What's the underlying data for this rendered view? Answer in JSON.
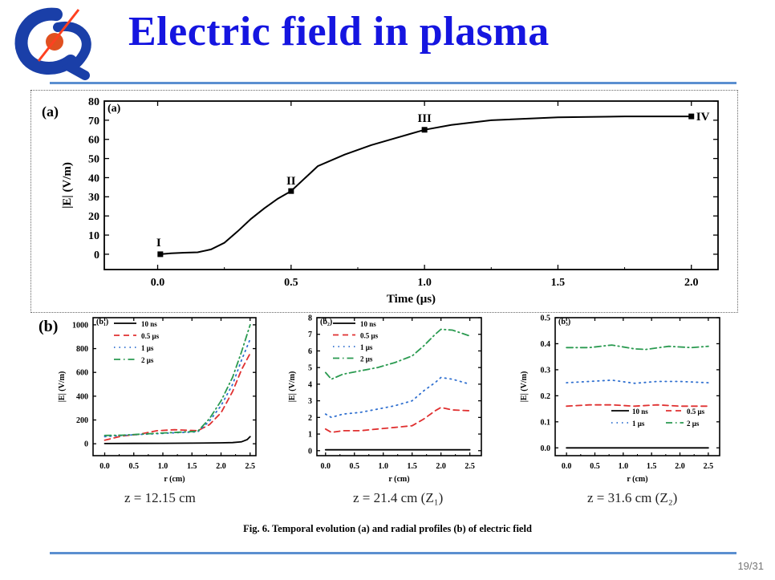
{
  "slide": {
    "title": "Electric field in plasma",
    "page_number": "19/31",
    "caption": "Fig. 6.  Temporal evolution (a)  and radial profiles (b) of  electric field",
    "panel_a_label": "(a)",
    "panel_b_label": "(b)",
    "z_labels": [
      "z = 12.15 cm",
      "z = 21.4 cm (Z₁)",
      "z = 31.6 cm (Z₂)"
    ],
    "colors": {
      "title": "#1515e0",
      "rule": "#5b8fd0"
    }
  },
  "chart_data": [
    {
      "id": "a",
      "type": "line",
      "inner_label": "(a)",
      "xlabel": "Time  (μs)",
      "ylabel": "|E|  (V/m)",
      "xlim": [
        -0.2,
        2.1
      ],
      "ylim": [
        -8,
        80
      ],
      "xticks": [
        0.0,
        0.5,
        1.0,
        1.5,
        2.0
      ],
      "xtick_labels": [
        "0.0",
        "0.5",
        "1.0",
        "1.5",
        "2.0"
      ],
      "yticks": [
        0,
        10,
        20,
        30,
        40,
        50,
        60,
        70,
        80
      ],
      "ytick_labels": [
        "0",
        "10",
        "20",
        "30",
        "40",
        "50",
        "60",
        "70",
        "80"
      ],
      "series": [
        {
          "name": "|E|",
          "color": "#000000",
          "x": [
            0.01,
            0.05,
            0.1,
            0.15,
            0.2,
            0.25,
            0.3,
            0.35,
            0.4,
            0.45,
            0.5,
            0.6,
            0.7,
            0.8,
            0.9,
            1.0,
            1.1,
            1.25,
            1.5,
            1.75,
            2.0
          ],
          "y": [
            0,
            0.5,
            0.8,
            1,
            2.5,
            6,
            12,
            18.5,
            24,
            29,
            33,
            46,
            52,
            57,
            61,
            65,
            67.5,
            70,
            71.5,
            72,
            72
          ]
        }
      ],
      "markers": [
        {
          "label": "I",
          "x": 0.01,
          "y": 0
        },
        {
          "label": "II",
          "x": 0.5,
          "y": 33
        },
        {
          "label": "III",
          "x": 1.0,
          "y": 65
        },
        {
          "label": "IV",
          "x": 2.0,
          "y": 72
        }
      ]
    },
    {
      "id": "b1",
      "type": "line",
      "inner_label": "(b₁)",
      "xlabel": "r  (cm)",
      "ylabel": "|E|  (V/m)",
      "xlim": [
        -0.2,
        2.6
      ],
      "ylim": [
        -100,
        1060
      ],
      "xticks": [
        0.0,
        0.5,
        1.0,
        1.5,
        2.0,
        2.5
      ],
      "xtick_labels": [
        "0.0",
        "0.5",
        "1.0",
        "1.5",
        "2.0",
        "2.5"
      ],
      "yticks": [
        0,
        200,
        400,
        600,
        800,
        1000
      ],
      "ytick_labels": [
        "0",
        "200",
        "400",
        "600",
        "800",
        "1000"
      ],
      "legend": [
        "10 ns",
        "0.5 μs",
        "1 μs",
        "2 μs"
      ],
      "series": [
        {
          "name": "10 ns",
          "style": "solid",
          "color": "#000000",
          "x": [
            0,
            0.5,
            1,
            1.5,
            2,
            2.2,
            2.35,
            2.45,
            2.5
          ],
          "y": [
            2,
            3,
            4,
            5,
            8,
            10,
            16,
            35,
            60
          ]
        },
        {
          "name": "0.5 μs",
          "style": "dash",
          "color": "#e03030",
          "x": [
            0,
            0.3,
            0.6,
            0.9,
            1.2,
            1.6,
            1.8,
            2.0,
            2.2,
            2.35,
            2.5
          ],
          "y": [
            30,
            65,
            80,
            110,
            118,
            110,
            160,
            260,
            440,
            620,
            760
          ]
        },
        {
          "name": "1 μs",
          "style": "dot",
          "color": "#3070d0",
          "x": [
            0,
            0.3,
            0.6,
            0.9,
            1.2,
            1.6,
            1.8,
            2.0,
            2.2,
            2.35,
            2.5
          ],
          "y": [
            60,
            70,
            78,
            85,
            92,
            100,
            190,
            320,
            500,
            700,
            880
          ]
        },
        {
          "name": "2 μs",
          "style": "dashdot",
          "color": "#2a9a50",
          "x": [
            0,
            0.3,
            0.6,
            0.9,
            1.2,
            1.6,
            1.8,
            2.0,
            2.2,
            2.35,
            2.5
          ],
          "y": [
            70,
            72,
            80,
            88,
            95,
            105,
            210,
            360,
            560,
            770,
            1000
          ]
        }
      ]
    },
    {
      "id": "b2",
      "type": "line",
      "inner_label": "(b₂)",
      "xlabel": "r  (cm)",
      "ylabel": "|E|  (V/m)",
      "xlim": [
        -0.15,
        2.7
      ],
      "ylim": [
        -0.3,
        8
      ],
      "xticks": [
        0.0,
        0.5,
        1.0,
        1.5,
        2.0,
        2.5
      ],
      "xtick_labels": [
        "0.0",
        "0.5",
        "1.0",
        "1.5",
        "2.0",
        "2.5"
      ],
      "yticks": [
        0,
        1,
        2,
        3,
        4,
        5,
        6,
        7,
        8
      ],
      "ytick_labels": [
        "0",
        "1",
        "2",
        "3",
        "4",
        "5",
        "6",
        "7",
        "8"
      ],
      "legend": [
        "10 ns",
        "0.5 μs",
        "1 μs",
        "2 μs"
      ],
      "series": [
        {
          "name": "10 ns",
          "style": "solid",
          "color": "#000000",
          "x": [
            0,
            2.5
          ],
          "y": [
            0.05,
            0.05
          ]
        },
        {
          "name": "0.5 μs",
          "style": "dash",
          "color": "#e03030",
          "x": [
            0,
            0.1,
            0.3,
            0.6,
            0.9,
            1.2,
            1.5,
            1.7,
            1.9,
            2.0,
            2.2,
            2.5
          ],
          "y": [
            1.3,
            1.1,
            1.2,
            1.2,
            1.3,
            1.4,
            1.5,
            1.9,
            2.4,
            2.6,
            2.45,
            2.4
          ]
        },
        {
          "name": "1 μs",
          "style": "dot",
          "color": "#3070d0",
          "x": [
            0,
            0.1,
            0.3,
            0.6,
            0.9,
            1.2,
            1.5,
            1.7,
            1.9,
            2.0,
            2.2,
            2.5
          ],
          "y": [
            2.2,
            2.0,
            2.2,
            2.3,
            2.5,
            2.7,
            3.0,
            3.6,
            4.1,
            4.4,
            4.3,
            4.0
          ]
        },
        {
          "name": "2 μs",
          "style": "dashdot",
          "color": "#2a9a50",
          "x": [
            0,
            0.1,
            0.3,
            0.6,
            0.9,
            1.2,
            1.5,
            1.7,
            1.9,
            2.0,
            2.2,
            2.5
          ],
          "y": [
            4.7,
            4.3,
            4.6,
            4.8,
            5.0,
            5.3,
            5.7,
            6.3,
            7.0,
            7.3,
            7.25,
            6.9
          ]
        }
      ]
    },
    {
      "id": "b3",
      "type": "line",
      "inner_label": "(b₃)",
      "xlabel": "r  (cm)",
      "ylabel": "|E|  (V/m)",
      "xlim": [
        -0.2,
        2.7
      ],
      "ylim": [
        -0.03,
        0.5
      ],
      "xticks": [
        0.0,
        0.5,
        1.0,
        1.5,
        2.0,
        2.5
      ],
      "xtick_labels": [
        "0.0",
        "0.5",
        "1.0",
        "1.5",
        "2.0",
        "2.5"
      ],
      "yticks": [
        0.0,
        0.1,
        0.2,
        0.3,
        0.4,
        0.5
      ],
      "ytick_labels": [
        "0.0",
        "0.1",
        "0.2",
        "0.3",
        "0.4",
        "0.5"
      ],
      "legend": [
        "10 ns",
        "0.5 μs",
        "1 μs",
        "2 μs"
      ],
      "series": [
        {
          "name": "10 ns",
          "style": "solid",
          "color": "#000000",
          "x": [
            0,
            2.5
          ],
          "y": [
            0.0,
            0.0
          ]
        },
        {
          "name": "0.5 μs",
          "style": "dash",
          "color": "#e03030",
          "x": [
            0,
            0.4,
            0.8,
            1.2,
            1.6,
            2.0,
            2.5
          ],
          "y": [
            0.16,
            0.165,
            0.165,
            0.16,
            0.165,
            0.16,
            0.16
          ]
        },
        {
          "name": "1 μs",
          "style": "dot",
          "color": "#3070d0",
          "x": [
            0,
            0.4,
            0.8,
            1.2,
            1.6,
            2.0,
            2.5
          ],
          "y": [
            0.25,
            0.255,
            0.26,
            0.248,
            0.255,
            0.255,
            0.25
          ]
        },
        {
          "name": "2 μs",
          "style": "dashdot",
          "color": "#2a9a50",
          "x": [
            0,
            0.4,
            0.8,
            1.2,
            1.4,
            1.8,
            2.2,
            2.5
          ],
          "y": [
            0.385,
            0.385,
            0.395,
            0.38,
            0.378,
            0.39,
            0.385,
            0.39
          ]
        }
      ]
    }
  ]
}
